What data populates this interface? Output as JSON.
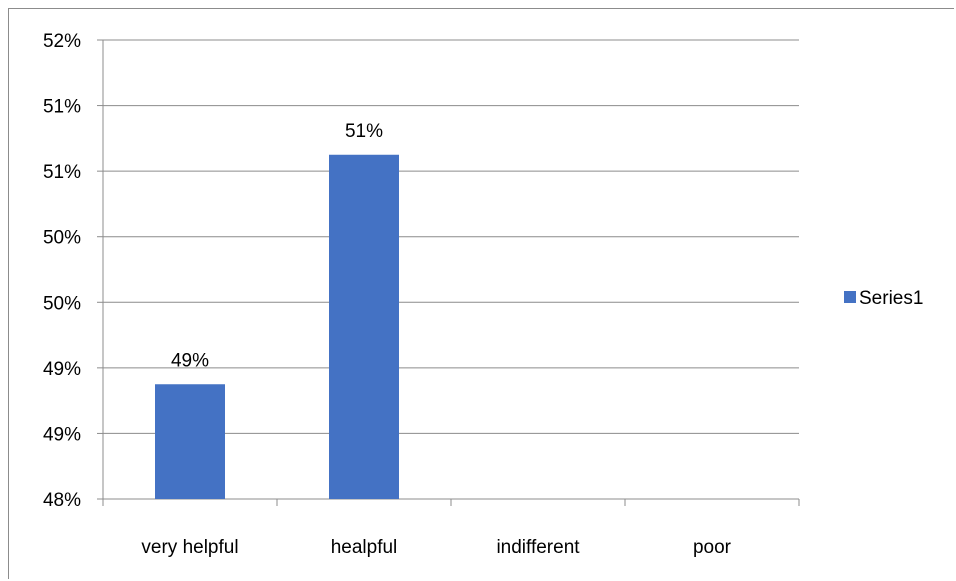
{
  "chart_data": {
    "type": "bar",
    "categories": [
      "very helpful",
      "healpful",
      "indifferent",
      "poor"
    ],
    "series": [
      {
        "name": "Series1",
        "values": [
          0.49,
          0.51,
          null,
          null
        ],
        "data_labels": [
          "49%",
          "51%",
          "",
          ""
        ],
        "color": "#4472C4"
      }
    ],
    "y_axis": {
      "min": 0.48,
      "max": 0.52,
      "tick_labels": [
        "52%",
        "51%",
        "51%",
        "50%",
        "50%",
        "49%",
        "49%",
        "48%"
      ]
    },
    "gridlines": true,
    "legend_position": "right",
    "colors": {
      "grid": "#8c8c8c",
      "axis": "#8c8c8c",
      "bar": "#4472C4"
    }
  }
}
